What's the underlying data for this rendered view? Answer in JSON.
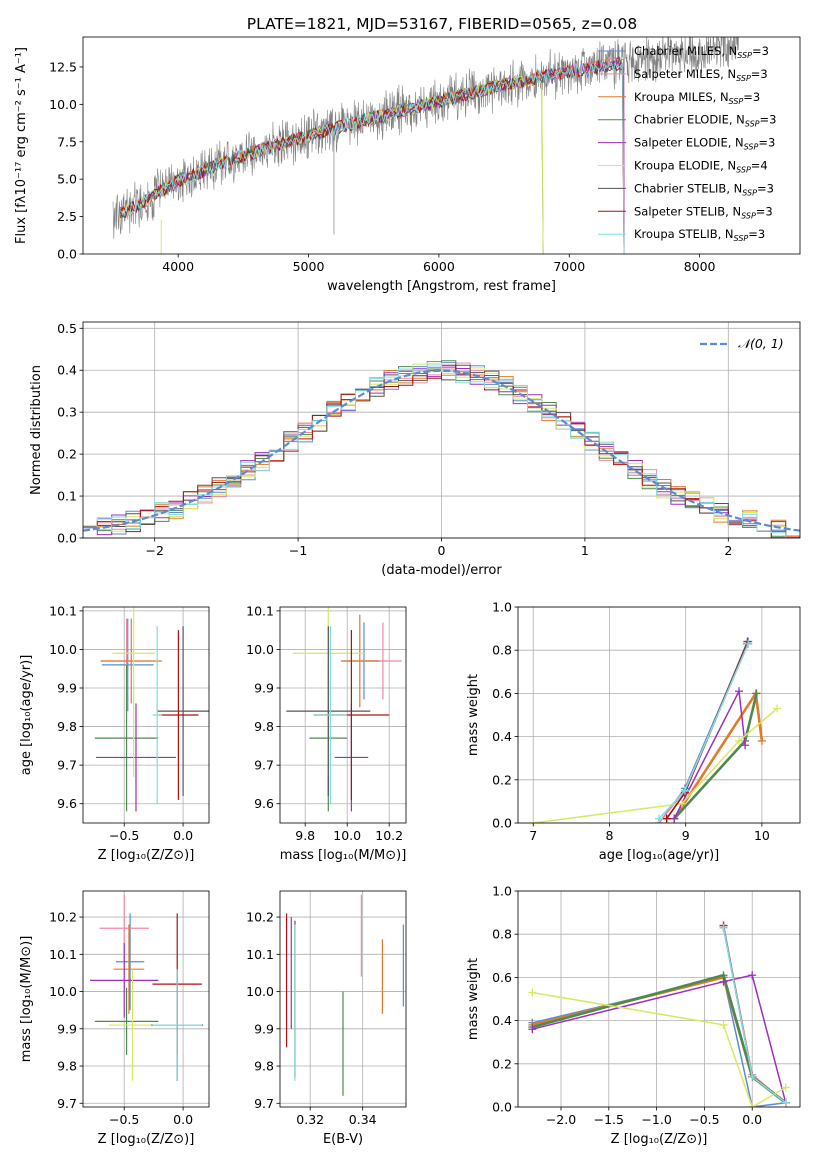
{
  "figure_title": "PLATE=1821, MJD=53167, FIBERID=0565, z=0.08",
  "colors": {
    "Chabrier MILES": "#5b8bd6",
    "Salpeter MILES": "#f08aa6",
    "Kroupa MILES": "#e07b2a",
    "Chabrier ELODIE": "#4e8a50",
    "Salpeter ELODIE": "#9b30c0",
    "Kroupa ELODIE": "#d8e860",
    "Chabrier STELIB": "#555555",
    "Salpeter STELIB": "#b01010",
    "Kroupa STELIB": "#80dde0",
    "data": "#808080",
    "normal": "#5b8bd6"
  },
  "chart_data": [
    {
      "id": "spectrum",
      "type": "line",
      "title": "PLATE=1821, MJD=53167, FIBERID=0565, z=0.08",
      "xlabel": "wavelength [Angstrom, rest frame]",
      "ylabel": "Flux [fλ10⁻¹⁷ erg cm⁻² s⁻¹ A⁻¹]",
      "xlim": [
        3270,
        8770
      ],
      "ylim": [
        0,
        14.5
      ],
      "xticks": [
        4000,
        5000,
        6000,
        7000,
        8000
      ],
      "yticks": [
        0.0,
        2.5,
        5.0,
        7.5,
        10.0,
        12.5
      ],
      "ytick_labels": [
        "0.0",
        "2.5",
        "5.0",
        "7.5",
        "10.0",
        "12.5"
      ],
      "continuum": {
        "x": [
          3500,
          3700,
          3900,
          4000,
          4300,
          4500,
          5000,
          5500,
          6000,
          6500,
          7000,
          7500,
          8000,
          8300
        ],
        "y": [
          2.5,
          3.3,
          4.4,
          4.9,
          5.9,
          6.6,
          7.9,
          9.1,
          10.2,
          11.3,
          12.2,
          12.9,
          13.6,
          14.0
        ]
      },
      "legend": {
        "position": "upper right",
        "entries": [
          {
            "model": "Chabrier MILES",
            "n_ssp": "3"
          },
          {
            "model": "Salpeter MILES",
            "n_ssp": "3"
          },
          {
            "model": "Kroupa MILES",
            "n_ssp": "3"
          },
          {
            "model": "Chabrier ELODIE",
            "n_ssp": "3"
          },
          {
            "model": "Salpeter ELODIE",
            "n_ssp": "3"
          },
          {
            "model": "Kroupa ELODIE",
            "n_ssp": "4"
          },
          {
            "model": "Chabrier STELIB",
            "n_ssp": "3"
          },
          {
            "model": "Salpeter STELIB",
            "n_ssp": "3"
          },
          {
            "model": "Kroupa STELIB",
            "n_ssp": "3"
          }
        ],
        "n_label": "N",
        "n_sub": "SSP"
      }
    },
    {
      "id": "residuals",
      "type": "line",
      "xlabel": "(data-model)/error",
      "ylabel": "Normed distribution",
      "xlim": [
        -2.5,
        2.5
      ],
      "ylim": [
        0,
        0.515
      ],
      "xticks": [
        -2,
        -1,
        0,
        1,
        2
      ],
      "xtick_labels": [
        "−2",
        "−1",
        "0",
        "1",
        "2"
      ],
      "yticks": [
        0.0,
        0.1,
        0.2,
        0.3,
        0.4,
        0.5
      ],
      "ytick_labels": [
        "0.0",
        "0.1",
        "0.2",
        "0.3",
        "0.4",
        "0.5"
      ],
      "grid": true,
      "legend": {
        "position": "upper right",
        "label": "𝒩(0, 1)"
      }
    },
    {
      "id": "age_vs_Z",
      "type": "scatter",
      "xlabel": "Z [log₁₀(Z/Z⊙)]",
      "ylabel": "age  [log₁₀(age/yr)]",
      "xlim": [
        -0.85,
        0.22
      ],
      "ylim": [
        9.55,
        10.11
      ],
      "xticks": [
        -0.5,
        0.0
      ],
      "xtick_labels": [
        "−0.5",
        "0.0"
      ],
      "yticks": [
        9.6,
        9.7,
        9.8,
        9.9,
        10.0,
        10.1
      ],
      "ytick_labels": [
        "9.6",
        "9.7",
        "9.8",
        "9.9",
        "10.0",
        "10.1"
      ],
      "points": [
        {
          "model": "Chabrier MILES",
          "x": -0.47,
          "xerr": 0.22,
          "y": 9.96,
          "yerr": 0.12
        },
        {
          "model": "Salpeter MILES",
          "x": -0.48,
          "xerr": 0.22,
          "y": 9.97,
          "yerr": 0.11
        },
        {
          "model": "Kroupa MILES",
          "x": -0.44,
          "xerr": 0.26,
          "y": 9.97,
          "yerr": 0.11
        },
        {
          "model": "Chabrier ELODIE",
          "x": -0.48,
          "xerr": 0.27,
          "y": 9.77,
          "yerr": 0.19
        },
        {
          "model": "Salpeter ELODIE",
          "x": -0.4,
          "xerr": 0.34,
          "y": 9.72,
          "yerr": 0.14
        },
        {
          "model": "Kroupa ELODIE",
          "x": -0.42,
          "xerr": 0.18,
          "y": 9.99,
          "yerr": 0.32
        },
        {
          "model": "Chabrier STELIB",
          "x": 0.0,
          "xerr": 0.22,
          "y": 9.84,
          "yerr": 0.22
        },
        {
          "model": "Salpeter STELIB",
          "x": -0.04,
          "xerr": 0.17,
          "y": 9.83,
          "yerr": 0.22
        },
        {
          "model": "Kroupa STELIB",
          "x": -0.22,
          "xerr": 0.04,
          "y": 9.83,
          "yerr": 0.23
        }
      ]
    },
    {
      "id": "age_vs_mass",
      "type": "scatter",
      "xlabel": "mass [log₁₀(M/M⊙)]",
      "xlim": [
        9.68,
        10.28
      ],
      "ylim": [
        9.55,
        10.11
      ],
      "xticks": [
        9.8,
        10.0,
        10.2
      ],
      "xtick_labels": [
        "9.8",
        "10.0",
        "10.2"
      ],
      "yticks": [
        9.6,
        9.7,
        9.8,
        9.9,
        10.0,
        10.1
      ],
      "ytick_labels": [
        "9.6",
        "9.7",
        "9.8",
        "9.9",
        "10.0",
        "10.1"
      ],
      "points": [
        {
          "model": "Chabrier MILES",
          "x": 10.08,
          "xerr": 0.1,
          "y": 9.97,
          "yerr": 0.1
        },
        {
          "model": "Salpeter MILES",
          "x": 10.17,
          "xerr": 0.09,
          "y": 9.97,
          "yerr": 0.1
        },
        {
          "model": "Kroupa MILES",
          "x": 10.06,
          "xerr": 0.09,
          "y": 9.97,
          "yerr": 0.12
        },
        {
          "model": "Chabrier ELODIE",
          "x": 9.91,
          "xerr": 0.09,
          "y": 9.77,
          "yerr": 0.19
        },
        {
          "model": "Salpeter ELODIE",
          "x": 10.02,
          "xerr": 0.08,
          "y": 9.72,
          "yerr": 0.14
        },
        {
          "model": "Kroupa ELODIE",
          "x": 9.91,
          "xerr": 0.17,
          "y": 9.99,
          "yerr": 0.32
        },
        {
          "model": "Chabrier STELIB",
          "x": 9.91,
          "xerr": 0.2,
          "y": 9.84,
          "yerr": 0.22
        },
        {
          "model": "Salpeter STELIB",
          "x": 10.02,
          "xerr": 0.18,
          "y": 9.83,
          "yerr": 0.22
        },
        {
          "model": "Kroupa STELIB",
          "x": 9.92,
          "xerr": 0.08,
          "y": 9.83,
          "yerr": 0.23
        }
      ]
    },
    {
      "id": "mass_weight_vs_age",
      "type": "line",
      "xlabel": "age  [log₁₀(age/yr)]",
      "ylabel": "mass weight",
      "xlim": [
        6.8,
        10.5
      ],
      "ylim": [
        0,
        1.0
      ],
      "xticks": [
        7,
        8,
        9,
        10
      ],
      "xtick_labels": [
        "7",
        "8",
        "9",
        "10"
      ],
      "yticks": [
        0.0,
        0.2,
        0.4,
        0.6,
        0.8,
        1.0
      ],
      "ytick_labels": [
        "0.0",
        "0.2",
        "0.4",
        "0.6",
        "0.8",
        "1.0"
      ],
      "grid": true,
      "series": [
        {
          "model": "Chabrier MILES",
          "x": [
            8.65,
            8.99,
            9.82
          ],
          "y": [
            0.0,
            0.16,
            0.84
          ]
        },
        {
          "model": "Salpeter MILES",
          "x": [
            8.65,
            8.99,
            9.82
          ],
          "y": [
            0.0,
            0.15,
            0.83
          ]
        },
        {
          "model": "Kroupa MILES",
          "x": [
            8.85,
            9.92,
            10.0
          ],
          "y": [
            0.02,
            0.6,
            0.38
          ]
        },
        {
          "model": "Chabrier ELODIE",
          "x": [
            8.85,
            9.78,
            9.93
          ],
          "y": [
            0.02,
            0.38,
            0.6
          ]
        },
        {
          "model": "Salpeter ELODIE",
          "x": [
            8.85,
            9.7,
            9.78
          ],
          "y": [
            0.02,
            0.61,
            0.36
          ]
        },
        {
          "model": "Kroupa ELODIE",
          "x": [
            7.0,
            8.95,
            9.7,
            10.2
          ],
          "y": [
            0.0,
            0.09,
            0.38,
            0.53
          ]
        },
        {
          "model": "Chabrier STELIB",
          "x": [
            8.75,
            8.99,
            9.81
          ],
          "y": [
            0.02,
            0.14,
            0.84
          ]
        },
        {
          "model": "Salpeter STELIB",
          "x": [
            8.75,
            8.99,
            9.81
          ],
          "y": [
            0.02,
            0.14,
            0.83
          ]
        },
        {
          "model": "Kroupa STELIB",
          "x": [
            8.65,
            8.99,
            9.82
          ],
          "y": [
            0.02,
            0.15,
            0.83
          ]
        }
      ]
    },
    {
      "id": "mass_vs_Z",
      "type": "scatter",
      "xlabel": "Z [log₁₀(Z/Z⊙)]",
      "ylabel": "mass [log₁₀(M/M⊙)]",
      "xlim": [
        -0.85,
        0.22
      ],
      "ylim": [
        9.69,
        10.27
      ],
      "xticks": [
        -0.5,
        0.0
      ],
      "xtick_labels": [
        "−0.5",
        "0.0"
      ],
      "yticks": [
        9.7,
        9.8,
        9.9,
        10.0,
        10.1,
        10.2
      ],
      "ytick_labels": [
        "9.7",
        "9.8",
        "9.9",
        "10.0",
        "10.1",
        "10.2"
      ],
      "points": [
        {
          "model": "Chabrier MILES",
          "x": -0.45,
          "xerr": 0.12,
          "y": 10.08,
          "yerr": 0.13
        },
        {
          "model": "Salpeter MILES",
          "x": -0.5,
          "xerr": 0.21,
          "y": 10.17,
          "yerr": 0.09
        },
        {
          "model": "Kroupa MILES",
          "x": -0.46,
          "xerr": 0.13,
          "y": 10.06,
          "yerr": 0.12
        },
        {
          "model": "Chabrier ELODIE",
          "x": -0.48,
          "xerr": 0.27,
          "y": 9.92,
          "yerr": 0.09
        },
        {
          "model": "Salpeter ELODIE",
          "x": -0.5,
          "xerr": 0.29,
          "y": 10.03,
          "yerr": 0.1
        },
        {
          "model": "Kroupa ELODIE",
          "x": -0.43,
          "xerr": 0.2,
          "y": 9.91,
          "yerr": 0.15
        },
        {
          "model": "Chabrier STELIB",
          "x": -0.05,
          "xerr": 0.22,
          "y": 9.91,
          "yerr": 0.15
        },
        {
          "model": "Salpeter STELIB",
          "x": -0.05,
          "xerr": 0.21,
          "y": 10.02,
          "yerr": 0.19
        },
        {
          "model": "Kroupa STELIB",
          "x": -0.05,
          "xerr": 0.21,
          "y": 9.91,
          "yerr": 0.15
        }
      ]
    },
    {
      "id": "mass_vs_ebv",
      "type": "scatter",
      "xlabel": "E(B-V)",
      "xlim": [
        0.3085,
        0.3565
      ],
      "ylim": [
        9.69,
        10.27
      ],
      "xticks": [
        0.32,
        0.34
      ],
      "xtick_labels": [
        "0.32",
        "0.34"
      ],
      "yticks": [
        9.7,
        9.8,
        9.9,
        10.0,
        10.1,
        10.2
      ],
      "ytick_labels": [
        "9.7",
        "9.8",
        "9.9",
        "10.0",
        "10.1",
        "10.2"
      ],
      "points": [
        {
          "model": "Chabrier MILES",
          "x": 0.3555,
          "y": 10.07,
          "yerr": 0.11
        },
        {
          "model": "Salpeter MILES",
          "x": 0.3395,
          "y": 10.15,
          "yerr": 0.11
        },
        {
          "model": "Kroupa MILES",
          "x": 0.3475,
          "y": 10.04,
          "yerr": 0.1
        },
        {
          "model": "Chabrier ELODIE",
          "x": 0.3325,
          "y": 9.86,
          "yerr": 0.14
        },
        {
          "model": "Salpeter ELODIE",
          "x": 0.3128,
          "y": 10.05,
          "yerr": 0.15
        },
        {
          "model": "Kroupa ELODIE",
          "x": 0.3142,
          "y": 9.97,
          "yerr": 0.2
        },
        {
          "model": "Chabrier STELIB",
          "x": 0.3142,
          "y": 9.98,
          "yerr": 0.21
        },
        {
          "model": "Salpeter STELIB",
          "x": 0.311,
          "y": 10.03,
          "yerr": 0.18
        },
        {
          "model": "Kroupa STELIB",
          "x": 0.3142,
          "y": 9.97,
          "yerr": 0.21
        }
      ]
    },
    {
      "id": "mass_weight_vs_Z",
      "type": "line",
      "xlabel": "Z [log₁₀(Z/Z⊙)]",
      "ylabel": "mass weight",
      "xlim": [
        -2.45,
        0.5
      ],
      "ylim": [
        0,
        1.0
      ],
      "xticks": [
        -2.0,
        -1.5,
        -1.0,
        -0.5,
        0.0
      ],
      "xtick_labels": [
        "−2.0",
        "−1.5",
        "−1.0",
        "−0.5",
        "0.0"
      ],
      "yticks": [
        0.0,
        0.2,
        0.4,
        0.6,
        0.8,
        1.0
      ],
      "ytick_labels": [
        "0.0",
        "0.2",
        "0.4",
        "0.6",
        "0.8",
        "1.0"
      ],
      "grid": true,
      "series": [
        {
          "model": "Chabrier MILES",
          "x": [
            -2.3,
            -0.3,
            0.0,
            0.35
          ],
          "y": [
            0.39,
            0.6,
            0.0,
            0.02
          ]
        },
        {
          "model": "Salpeter MILES",
          "x": [
            -0.3,
            0.0,
            0.35
          ],
          "y": [
            0.84,
            0.15,
            0.02
          ]
        },
        {
          "model": "Kroupa MILES",
          "x": [
            -2.3,
            -0.3,
            0.0,
            0.35
          ],
          "y": [
            0.38,
            0.6,
            0.14,
            0.02
          ]
        },
        {
          "model": "Chabrier ELODIE",
          "x": [
            -2.3,
            -0.3,
            0.0,
            0.35
          ],
          "y": [
            0.37,
            0.61,
            0.14,
            0.02
          ]
        },
        {
          "model": "Salpeter ELODIE",
          "x": [
            -2.3,
            -0.3,
            0.0,
            0.35
          ],
          "y": [
            0.36,
            0.58,
            0.61,
            0.02
          ]
        },
        {
          "model": "Kroupa ELODIE",
          "x": [
            -2.3,
            -0.3,
            0.0,
            0.35
          ],
          "y": [
            0.53,
            0.38,
            0.0,
            0.09
          ]
        },
        {
          "model": "Chabrier STELIB",
          "x": [
            -0.3,
            0.0,
            0.35
          ],
          "y": [
            0.84,
            0.14,
            0.02
          ]
        },
        {
          "model": "Salpeter STELIB",
          "x": [
            -0.3,
            0.0,
            0.35
          ],
          "y": [
            0.83,
            0.14,
            0.02
          ]
        },
        {
          "model": "Kroupa STELIB",
          "x": [
            -0.3,
            0.0,
            0.35
          ],
          "y": [
            0.83,
            0.14,
            0.02
          ]
        }
      ]
    }
  ]
}
